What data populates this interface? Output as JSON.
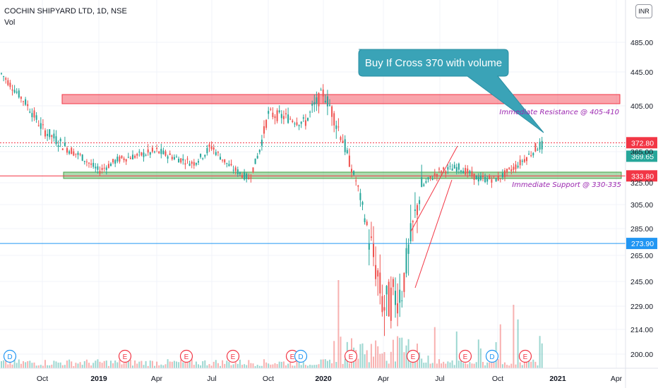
{
  "header": {
    "title": "COCHIN SHIPYARD LTD, 1D, NSE",
    "indicator": "Vol"
  },
  "currency_badge": "INR",
  "chart_data": {
    "type": "candlestick",
    "price_ticks": [
      "485.00",
      "445.00",
      "405.00",
      "365.00",
      "325.00",
      "305.00",
      "285.00",
      "265.00",
      "245.00",
      "229.00",
      "214.00",
      "200.00"
    ],
    "price_tick_values": [
      485,
      445,
      405,
      365,
      325,
      305,
      285,
      265,
      245,
      229,
      214,
      200
    ],
    "time_ticks": [
      "Oct",
      "2019",
      "Apr",
      "Jul",
      "Oct",
      "2020",
      "Apr",
      "Jul",
      "Oct",
      "2021",
      "Apr"
    ],
    "time_tick_bold": [
      false,
      true,
      false,
      false,
      false,
      true,
      false,
      false,
      false,
      true,
      false
    ],
    "current_price": "369.65",
    "levels": [
      {
        "label": "372.80",
        "value": 372.8,
        "color": "#f23645"
      },
      {
        "label": "333.80",
        "value": 333.8,
        "color": "#f23645"
      },
      {
        "label": "273.90",
        "value": 273.9,
        "color": "#2196f3"
      }
    ],
    "zones": [
      {
        "name": "resistance",
        "low": 405,
        "high": 410,
        "color": "#f23645"
      },
      {
        "name": "support",
        "low": 330,
        "high": 335,
        "color": "#4caf50"
      }
    ],
    "annotations": {
      "resistance": "Immediate Resistance @ 405-410",
      "support": "Immediate Support @ 330-335",
      "callout": "Buy If Cross 370 with volume"
    },
    "events": [
      "D",
      "E",
      "E",
      "E",
      "E",
      "D",
      "E",
      "E",
      "E",
      "D",
      "E"
    ],
    "events_color": {
      "D": "#2196f3",
      "E": "#f23645"
    },
    "colors": {
      "up": "#26a69a",
      "down": "#ef5350",
      "callout": "#3aa3b7"
    },
    "price_path": [
      {
        "t": "2018-09",
        "p": 445
      },
      {
        "t": "2018-10",
        "p": 385
      },
      {
        "t": "2018-11",
        "p": 372
      },
      {
        "t": "2018-12",
        "p": 360
      },
      {
        "t": "2019-01",
        "p": 340
      },
      {
        "t": "2019-02",
        "p": 355
      },
      {
        "t": "2019-04",
        "p": 365
      },
      {
        "t": "2019-06",
        "p": 350
      },
      {
        "t": "2019-07",
        "p": 370
      },
      {
        "t": "2019-08",
        "p": 345
      },
      {
        "t": "2019-09",
        "p": 330
      },
      {
        "t": "2019-10",
        "p": 398
      },
      {
        "t": "2019-11",
        "p": 395
      },
      {
        "t": "2019-12",
        "p": 390
      },
      {
        "t": "2020-01",
        "p": 420
      },
      {
        "t": "2020-02",
        "p": 375
      },
      {
        "t": "2020-03",
        "p": 300
      },
      {
        "t": "2020-04",
        "p": 228
      },
      {
        "t": "2020-05",
        "p": 240
      },
      {
        "t": "2020-06",
        "p": 320
      },
      {
        "t": "2020-07",
        "p": 340
      },
      {
        "t": "2020-08",
        "p": 345
      },
      {
        "t": "2020-09",
        "p": 330
      },
      {
        "t": "2020-10",
        "p": 330
      },
      {
        "t": "2020-11",
        "p": 348
      },
      {
        "t": "2020-12",
        "p": 370
      }
    ]
  }
}
